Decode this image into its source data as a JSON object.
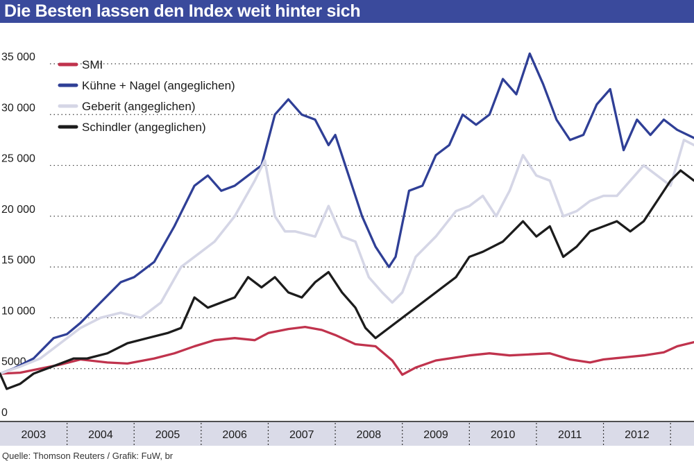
{
  "title": "Die Besten lassen den Index weit hinter sich",
  "source": "Quelle: Thomson Reuters / Grafik: FuW, br",
  "chart_data": {
    "type": "line",
    "title": "Die Besten lassen den Index weit hinter sich",
    "xlabel": "",
    "ylabel": "",
    "xlim": [
      2003.0,
      2013.35
    ],
    "ylim": [
      0,
      35000
    ],
    "yticks": [
      0,
      5000,
      10000,
      15000,
      20000,
      25000,
      30000,
      35000
    ],
    "ytick_labels": [
      "0",
      "5000",
      "10 000",
      "15 000",
      "20 000",
      "25 000",
      "30 000",
      "35 000"
    ],
    "xtick_labels": [
      "2003",
      "2004",
      "2005",
      "2006",
      "2007",
      "2008",
      "2009",
      "2010",
      "2011",
      "2012"
    ],
    "grid": "horizontal dotted",
    "legend": "top-left",
    "series": [
      {
        "name": "SMI",
        "color": "#c0334d",
        "x": [
          2003.0,
          2003.3,
          2003.6,
          2003.9,
          2004.2,
          2004.6,
          2004.9,
          2005.3,
          2005.6,
          2005.9,
          2006.2,
          2006.5,
          2006.8,
          2007.0,
          2007.3,
          2007.55,
          2007.8,
          2008.0,
          2008.3,
          2008.6,
          2008.85,
          2009.0,
          2009.2,
          2009.5,
          2009.8,
          2010.0,
          2010.3,
          2010.6,
          2010.9,
          2011.2,
          2011.5,
          2011.8,
          2012.0,
          2012.3,
          2012.6,
          2012.9,
          2013.1,
          2013.35
        ],
        "values": [
          4500,
          4600,
          5000,
          5400,
          5900,
          5600,
          5500,
          6000,
          6500,
          7200,
          7800,
          8000,
          7800,
          8500,
          8900,
          9100,
          8800,
          8300,
          7400,
          7200,
          5800,
          4400,
          5100,
          5800,
          6100,
          6300,
          6500,
          6300,
          6400,
          6500,
          5900,
          5600,
          5900,
          6100,
          6300,
          6600,
          7200,
          7600
        ]
      },
      {
        "name": "Kühne + Nagel (angeglichen)",
        "color": "#2f3f96",
        "x": [
          2003.0,
          2003.2,
          2003.5,
          2003.8,
          2004.0,
          2004.2,
          2004.5,
          2004.8,
          2005.0,
          2005.3,
          2005.6,
          2005.9,
          2006.1,
          2006.3,
          2006.5,
          2006.8,
          2006.9,
          2007.1,
          2007.3,
          2007.5,
          2007.7,
          2007.9,
          2008.0,
          2008.2,
          2008.4,
          2008.6,
          2008.8,
          2008.9,
          2009.1,
          2009.3,
          2009.5,
          2009.7,
          2009.9,
          2010.1,
          2010.3,
          2010.5,
          2010.7,
          2010.9,
          2011.1,
          2011.3,
          2011.5,
          2011.7,
          2011.9,
          2012.1,
          2012.3,
          2012.5,
          2012.7,
          2012.9,
          2013.1,
          2013.35
        ],
        "values": [
          4500,
          5000,
          6000,
          8000,
          8400,
          9500,
          11500,
          13500,
          14000,
          15500,
          19000,
          23000,
          24000,
          22500,
          23000,
          24500,
          25000,
          30000,
          31500,
          30000,
          29500,
          27000,
          28000,
          24000,
          20000,
          17000,
          15000,
          16000,
          22500,
          23000,
          26000,
          27000,
          30000,
          29000,
          30000,
          33500,
          32000,
          36000,
          33000,
          29500,
          27500,
          28000,
          31000,
          32500,
          26500,
          29500,
          28000,
          29500,
          28500,
          27700
        ]
      },
      {
        "name": "Geberit (angeglichen)",
        "color": "#d5d6e6",
        "x": [
          2003.0,
          2003.3,
          2003.6,
          2003.9,
          2004.2,
          2004.5,
          2004.8,
          2005.1,
          2005.4,
          2005.7,
          2006.0,
          2006.2,
          2006.5,
          2006.8,
          2006.95,
          2007.1,
          2007.25,
          2007.4,
          2007.7,
          2007.9,
          2008.1,
          2008.3,
          2008.5,
          2008.7,
          2008.85,
          2009.0,
          2009.2,
          2009.5,
          2009.8,
          2010.0,
          2010.2,
          2010.4,
          2010.6,
          2010.8,
          2011.0,
          2011.2,
          2011.4,
          2011.6,
          2011.8,
          2012.0,
          2012.2,
          2012.4,
          2012.6,
          2012.8,
          2013.0,
          2013.2,
          2013.35
        ],
        "values": [
          4500,
          5200,
          6000,
          7500,
          9000,
          10000,
          10500,
          10000,
          11500,
          15000,
          16500,
          17500,
          20000,
          23500,
          25500,
          20000,
          18500,
          18500,
          18000,
          21000,
          18000,
          17500,
          14000,
          12500,
          11500,
          12500,
          16000,
          18000,
          20500,
          21000,
          22000,
          20000,
          22500,
          26000,
          24000,
          23500,
          20000,
          20500,
          21500,
          22000,
          22000,
          23500,
          25000,
          24000,
          23000,
          27500,
          27000
        ]
      },
      {
        "name": "Schindler (angeglichen)",
        "color": "#1c1c1c",
        "x": [
          2003.0,
          2003.1,
          2003.3,
          2003.5,
          2003.7,
          2003.9,
          2004.1,
          2004.3,
          2004.6,
          2004.9,
          2005.2,
          2005.5,
          2005.7,
          2005.9,
          2006.1,
          2006.3,
          2006.5,
          2006.7,
          2006.9,
          2007.1,
          2007.3,
          2007.5,
          2007.7,
          2007.9,
          2008.1,
          2008.3,
          2008.45,
          2008.6,
          2008.8,
          2009.0,
          2009.2,
          2009.5,
          2009.8,
          2010.0,
          2010.2,
          2010.5,
          2010.8,
          2011.0,
          2011.2,
          2011.4,
          2011.6,
          2011.8,
          2012.0,
          2012.2,
          2012.4,
          2012.6,
          2012.8,
          2013.0,
          2013.15,
          2013.35
        ],
        "values": [
          4500,
          3000,
          3500,
          4500,
          5000,
          5500,
          6000,
          6000,
          6500,
          7500,
          8000,
          8500,
          9000,
          12000,
          11000,
          11500,
          12000,
          14000,
          13000,
          14000,
          12500,
          12000,
          13500,
          14500,
          12500,
          11000,
          9000,
          8000,
          9000,
          10000,
          11000,
          12500,
          14000,
          16000,
          16500,
          17500,
          19500,
          18000,
          19000,
          16000,
          17000,
          18500,
          19000,
          19500,
          18500,
          19500,
          21500,
          23500,
          24500,
          23500
        ]
      }
    ]
  }
}
